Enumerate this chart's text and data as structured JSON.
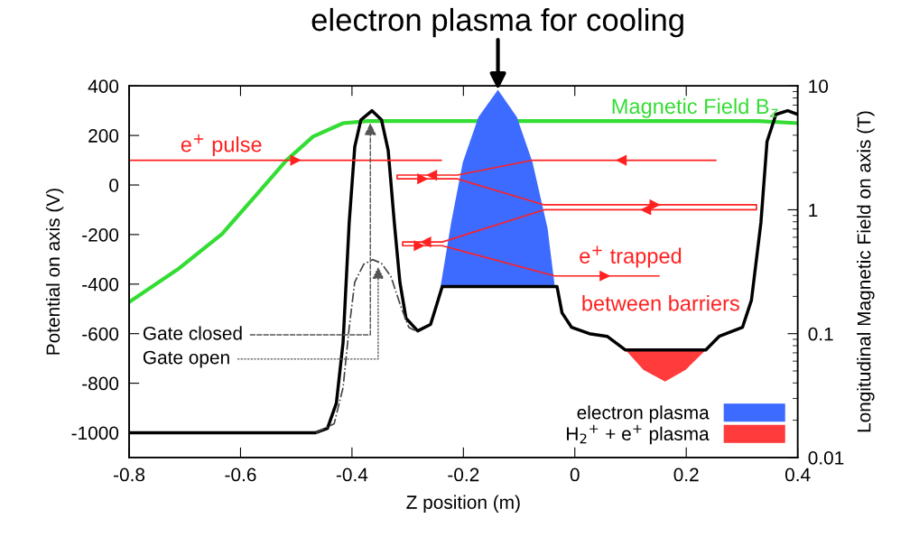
{
  "chart_data": {
    "type": "line",
    "xlabel": "Z position (m)",
    "ylabel": "Potential on axis (V)",
    "y2label": "Longitudinal Magnetic Field on axis (T)",
    "xlim": [
      -0.8,
      0.4
    ],
    "xticks": [
      -0.8,
      -0.6,
      -0.4,
      -0.2,
      0,
      0.2,
      0.4
    ],
    "ylim": [
      -1100,
      400
    ],
    "yticks": [
      -1000,
      -800,
      -600,
      -400,
      -200,
      0,
      200,
      400
    ],
    "y2lim": [
      0.01,
      10
    ],
    "y2ticks": [
      0.01,
      0.1,
      1,
      10
    ],
    "log": "y2",
    "grid": false,
    "legend": "bottom right",
    "marker": "none",
    "series": [
      {
        "color": "#000000",
        "line_style": "solid",
        "x": [
          -0.8,
          -0.465,
          -0.444,
          -0.428,
          -0.416,
          -0.405,
          -0.395,
          -0.384,
          -0.364,
          -0.347,
          -0.335,
          -0.324,
          -0.314,
          -0.303,
          -0.282,
          -0.259,
          -0.249,
          -0.238,
          -0.032,
          -0.023,
          -0.006,
          0.026,
          0.058,
          0.091,
          0.235,
          0.259,
          0.301,
          0.317,
          0.334,
          0.345,
          0.361,
          0.382,
          0.4
        ],
        "values": [
          -1000,
          -1000,
          -982,
          -880,
          -636,
          -152,
          154,
          263,
          300,
          263,
          140,
          -152,
          -392,
          -538,
          -589,
          -563,
          -491,
          -410,
          -410,
          -516,
          -574,
          -600,
          -611,
          -666,
          -666,
          -611,
          -574,
          -465,
          -152,
          176,
          285,
          300,
          285
        ]
      },
      {
        "color": "#444444",
        "line_style": "dashed",
        "x": [
          -0.465,
          -0.432,
          -0.416,
          -0.405,
          -0.395,
          -0.379,
          -0.363,
          -0.347,
          -0.33,
          -0.314,
          -0.298,
          -0.282
        ],
        "values": [
          -1000,
          -964,
          -818,
          -575,
          -392,
          -320,
          -301,
          -316,
          -370,
          -479,
          -575,
          -593
        ]
      },
      {
        "color": "#33dd33",
        "line_style": "solid",
        "axis": "y2",
        "x": [
          -0.8,
          -0.713,
          -0.633,
          -0.573,
          -0.518,
          -0.47,
          -0.416,
          -0.372,
          0.33,
          0.4
        ],
        "values": [
          0.18,
          0.33,
          0.64,
          1.3,
          2.5,
          3.9,
          5.0,
          5.2,
          5.2,
          5.0
        ]
      },
      {
        "type": "area",
        "name": "electron plasma",
        "color": "#3d6bff",
        "x": [
          -0.241,
          -0.222,
          -0.201,
          -0.173,
          -0.138,
          -0.104,
          -0.076,
          -0.049,
          -0.036
        ],
        "values": [
          -410,
          -152,
          92,
          274,
          384,
          274,
          92,
          -174,
          -410
        ]
      },
      {
        "type": "area",
        "name": "H$_{2}$$^{+}$ + e$^{+}$ plasma",
        "color": "#ff3b3b",
        "x": [
          0.091,
          0.123,
          0.162,
          0.199,
          0.235
        ],
        "values": [
          -666,
          -746,
          -793,
          -746,
          -666
        ]
      },
      {
        "color": "#ff2020",
        "line_style": "solid",
        "x": [
          -0.8,
          -0.24,
          null,
          0.253,
          -0.076,
          -0.211,
          -0.319,
          -0.319,
          -0.211,
          -0.055,
          0.326,
          0.326,
          -0.055,
          -0.238,
          -0.309,
          -0.309,
          -0.238,
          -0.036,
          0.151
        ],
        "values": [
          100,
          100,
          null,
          100,
          100,
          40,
          40,
          25,
          25,
          -80,
          -80,
          -100,
          -100,
          -230,
          -230,
          -245,
          -245,
          -367,
          -367
        ]
      }
    ],
    "annotations": [
      {
        "text": "electron plasma for cooling",
        "x": -0.138,
        "y": 384
      },
      "e$^{+}$ pulse",
      "Magnetic Field B$_{z}$",
      "e$^{+}$ trapped",
      "between barriers",
      {
        "text": "Gate closed",
        "x": -0.367,
        "y": 250
      },
      {
        "text": "Gate open",
        "x": -0.353,
        "y": -330
      }
    ]
  }
}
